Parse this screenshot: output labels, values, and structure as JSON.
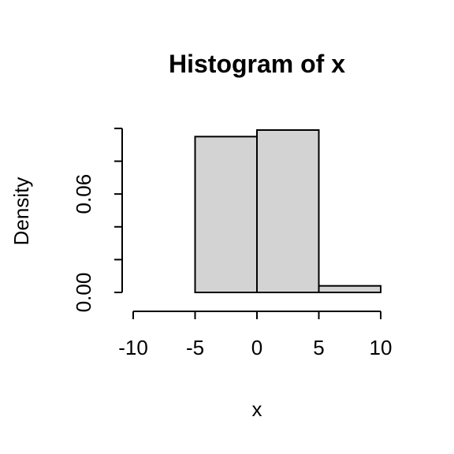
{
  "chart_data": {
    "type": "bar",
    "title": "Histogram of x",
    "xlabel": "x",
    "ylabel": "Density",
    "bins": [
      {
        "start": -10,
        "end": -5,
        "density": 0.0
      },
      {
        "start": -5,
        "end": 0,
        "density": 0.095
      },
      {
        "start": 0,
        "end": 5,
        "density": 0.099
      },
      {
        "start": 5,
        "end": 10,
        "density": 0.004
      }
    ],
    "xlim": [
      -10,
      10
    ],
    "ylim": [
      0,
      0.099
    ],
    "x_ticks": [
      -10,
      -5,
      0,
      5,
      10
    ],
    "x_tick_labels": [
      "-10",
      "-5",
      "0",
      "5",
      "10"
    ],
    "y_ticks": [
      0,
      0.02,
      0.04,
      0.06,
      0.08,
      0.1
    ],
    "y_tick_labels": [
      "0.00",
      "",
      "",
      "0.06",
      "",
      ""
    ],
    "grid": false,
    "legend": "none",
    "colors": {
      "bar_fill": "#d3d3d3",
      "bar_stroke": "#000000"
    }
  }
}
